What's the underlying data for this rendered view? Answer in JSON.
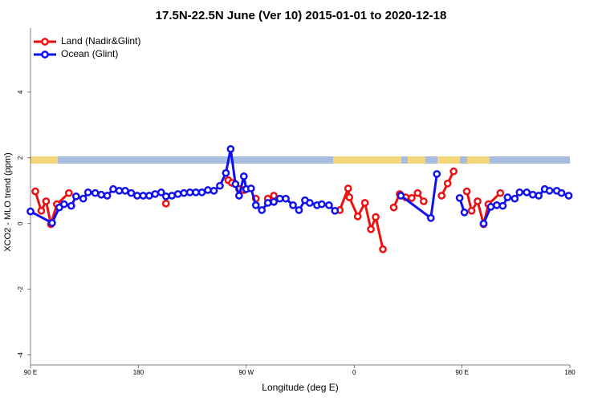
{
  "chart_data": {
    "type": "line",
    "title": "17.5N-22.5N June (Ver 10)   2015-01-01 to 2020-12-18",
    "x_label": "Longitude (deg E)",
    "y_label": "XCO2 - MLO trend (ppm)",
    "xlim": [
      90,
      540
    ],
    "xticks": [
      {
        "value": 90,
        "label": "90 E"
      },
      180,
      {
        "value": 270,
        "label": "90 W"
      },
      {
        "value": 360,
        "label": "0"
      },
      {
        "value": 450,
        "label": "90 E"
      },
      {
        "value": 540,
        "label": "180"
      }
    ],
    "ylim": [
      -4.3,
      5.95
    ],
    "yticks": [
      -4,
      -2,
      0,
      2,
      4
    ],
    "legend": "top-left",
    "series": [
      {
        "name": "Land (Nadir&Glint)",
        "color": "#ee1111",
        "x": [
          94,
          99,
          103,
          107,
          112,
          122,
          null,
          203,
          null,
          255,
          258,
          264,
          268,
          null,
          278,
          null,
          288,
          293,
          null,
          348,
          355,
          356,
          363,
          369,
          374,
          378,
          384,
          null,
          393,
          398,
          403,
          408,
          413,
          418,
          null,
          433,
          438,
          443,
          null,
          454,
          458,
          463,
          468,
          472,
          482
        ],
        "values": [
          0.98,
          0.39,
          0.68,
          -0.02,
          0.59,
          0.93,
          null,
          0.61,
          null,
          1.32,
          1.24,
          1.05,
          1.02,
          null,
          0.76,
          null,
          0.76,
          0.85,
          null,
          0.41,
          1.07,
          0.8,
          0.22,
          0.63,
          -0.17,
          0.2,
          -0.78,
          null,
          0.49,
          0.9,
          0.8,
          0.78,
          0.93,
          0.68,
          null,
          0.85,
          1.22,
          1.59,
          null,
          0.98,
          0.39,
          0.68,
          -0.02,
          0.59,
          0.93
        ]
      },
      {
        "name": "Ocean (Glint)",
        "color": "#1111ee",
        "x": [
          90,
          108,
          114,
          118,
          124,
          128,
          134,
          138,
          144,
          149,
          154,
          159,
          164,
          169,
          174,
          179,
          184,
          189,
          194,
          199,
          203,
          208,
          213,
          218,
          223,
          228,
          233,
          238,
          243,
          248,
          253,
          257,
          261,
          264,
          268,
          270,
          274,
          278,
          283,
          288,
          293,
          298,
          303,
          309,
          314,
          319,
          323,
          329,
          333,
          339,
          344,
          null,
          399,
          424,
          429,
          null,
          448,
          452,
          null,
          468,
          474,
          479,
          484,
          488,
          494,
          498,
          504,
          509,
          514,
          519,
          523,
          529,
          533,
          539
        ],
        "values": [
          0.37,
          0.02,
          0.49,
          0.59,
          0.54,
          0.83,
          0.76,
          0.95,
          0.93,
          0.88,
          0.85,
          1.05,
          1.0,
          1.0,
          0.93,
          0.85,
          0.85,
          0.85,
          0.9,
          0.95,
          0.83,
          0.85,
          0.9,
          0.93,
          0.95,
          0.95,
          0.95,
          1.02,
          1.0,
          1.15,
          1.54,
          2.27,
          1.2,
          0.85,
          1.44,
          1.05,
          1.07,
          0.56,
          0.41,
          0.63,
          0.66,
          0.76,
          0.76,
          0.56,
          0.41,
          0.71,
          0.63,
          0.56,
          0.59,
          0.56,
          0.39,
          null,
          0.85,
          0.17,
          1.51,
          null,
          0.78,
          0.34,
          null,
          0.0,
          0.51,
          0.56,
          0.54,
          0.8,
          0.76,
          0.95,
          0.95,
          0.88,
          0.85,
          1.05,
          1.0,
          1.0,
          0.93,
          0.85
        ]
      }
    ]
  }
}
